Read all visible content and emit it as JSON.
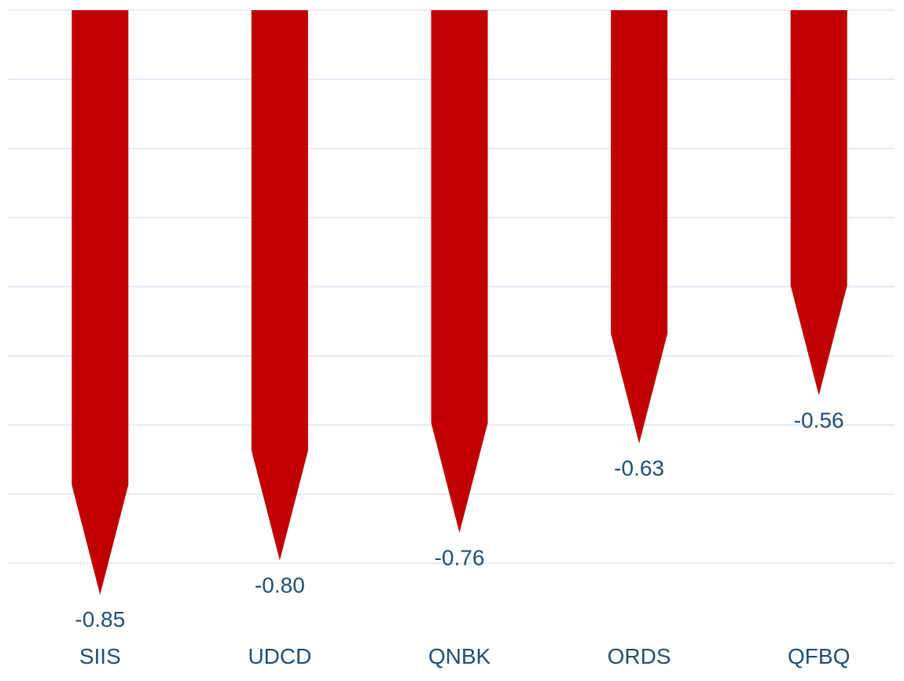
{
  "chart_data": {
    "type": "bar",
    "orientation": "vertical",
    "bar_shape": "arrow-down",
    "categories": [
      "SIIS",
      "UDCD",
      "QNBK",
      "ORDS",
      "QFBQ"
    ],
    "values": [
      -0.85,
      -0.8,
      -0.76,
      -0.63,
      -0.56
    ],
    "value_labels": [
      "-0.85",
      "-0.80",
      "-0.76",
      "-0.63",
      "-0.56"
    ],
    "title": "",
    "xlabel": "",
    "ylabel": "",
    "ylim": [
      -0.9,
      0.0
    ],
    "grid": true,
    "legend": "none",
    "colors": {
      "bar": "#C00000",
      "gridline": "#DCE6F0",
      "label_text": "#1F4E79"
    }
  }
}
